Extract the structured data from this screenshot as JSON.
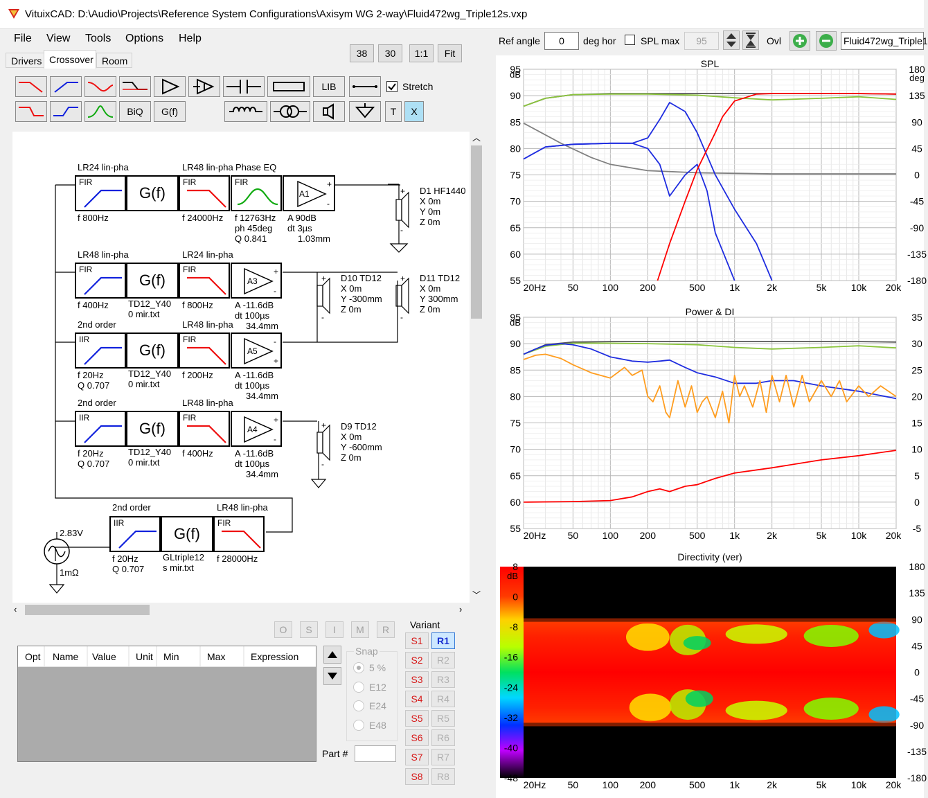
{
  "window": {
    "title": "VituixCAD: D:\\Audio\\Projects\\Reference System Configurations\\Axisym WG 2-way\\Fluid472wg_Triple12s.vxp"
  },
  "menu": {
    "file": "File",
    "view": "View",
    "tools": "Tools",
    "options": "Options",
    "help": "Help"
  },
  "tabs": {
    "drivers": "Drivers",
    "crossover": "Crossover",
    "room": "Room"
  },
  "zoom": {
    "b38": "38",
    "b30": "30",
    "one": "1:1",
    "fit": "Fit"
  },
  "toolbar": {
    "biq": "BiQ",
    "gf": "G(f)",
    "lib": "LIB",
    "t": "T",
    "x": "X",
    "stretch": "Stretch"
  },
  "top": {
    "ref_angle_label": "Ref angle",
    "ref_angle": "0",
    "deg_hor": "deg hor",
    "spl_max_label": "SPL max",
    "spl_max": "95",
    "ovl": "Ovl",
    "file": "Fluid472wg_Triple1"
  },
  "schematic": {
    "row1": {
      "l1": "LR24 lin-pha",
      "l2": "LR48 lin-pha",
      "l3": "Phase EQ",
      "f1": "f  800Hz",
      "f2": "f  24000Hz",
      "eq1": "f  12763Hz",
      "eq2": "ph 45deg",
      "eq3": "Q 0.841",
      "a1": "A  90dB",
      "a2": "dt 3µs",
      "a3": "1.03mm",
      "amp": "A1"
    },
    "row2": {
      "l1": "LR48 lin-pha",
      "l2": "LR24 lin-pha",
      "f1": "f  400Hz",
      "g1": "TD12_Y40",
      "g2": "0 mir.txt",
      "f2": "f  800Hz",
      "a1": "A  -11.6dB",
      "a2": "dt 100µs",
      "a3": "34.4mm",
      "amp": "A3"
    },
    "row3": {
      "l1": "2nd order",
      "l2": "LR48 lin-pha",
      "f1": "f  20Hz",
      "q1": "Q 0.707",
      "g1": "TD12_Y40",
      "g2": "0 mir.txt",
      "f2": "f  200Hz",
      "a1": "A  -11.6dB",
      "a2": "dt 100µs",
      "a3": "34.4mm",
      "amp": "A5"
    },
    "row4": {
      "l1": "2nd order",
      "l2": "LR48 lin-pha",
      "f1": "f  20Hz",
      "q1": "Q 0.707",
      "g1": "TD12_Y40",
      "g2": "0 mir.txt",
      "f2": "f  400Hz",
      "a1": "A  -11.6dB",
      "a2": "dt 100µs",
      "a3": "34.4mm",
      "amp": "A4"
    },
    "row5": {
      "l1": "2nd order",
      "l2": "LR48 lin-pha",
      "f1": "f  20Hz",
      "q1": "Q 0.707",
      "g1": "GLtriple12",
      "g2": "s mir.txt",
      "f2": "f  28000Hz"
    },
    "source": {
      "v": "2.83V",
      "r": "1mΩ"
    },
    "d1": {
      "name": "D1 HF1440",
      "x": "X 0m",
      "y": "Y 0m",
      "z": "Z 0m"
    },
    "d10": {
      "name": "D10 TD12",
      "x": "X 0m",
      "y": "Y -300mm",
      "z": "Z 0m"
    },
    "d11": {
      "name": "D11 TD12",
      "x": "X 0m",
      "y": "Y 300mm",
      "z": "Z 0m"
    },
    "d9": {
      "name": "D9 TD12",
      "x": "X 0m",
      "y": "Y -600mm",
      "z": "Z 0m"
    },
    "fir": "FIR",
    "iir": "IIR",
    "gf": "G(f)"
  },
  "opt_buttons": [
    "O",
    "S",
    "I",
    "M",
    "R"
  ],
  "table": {
    "headers": [
      "Opt",
      "Name",
      "Value",
      "Unit",
      "Min",
      "Max",
      "Expression"
    ]
  },
  "snap": {
    "title": "Snap",
    "o1": "5 %",
    "o2": "E12",
    "o3": "E24",
    "o4": "E48"
  },
  "part": {
    "label": "Part #"
  },
  "variant": {
    "title": "Variant",
    "s": [
      "S1",
      "S2",
      "S3",
      "S4",
      "S5",
      "S6",
      "S7",
      "S8"
    ],
    "r": [
      "R1",
      "R2",
      "R3",
      "R4",
      "R5",
      "R6",
      "R7",
      "R8"
    ]
  },
  "colors": {
    "red": "#ff0000",
    "blue": "#1f2de0",
    "green": "#8ac43c",
    "orange": "#ff9d1f",
    "grey": "#808080",
    "dark": "#555555"
  },
  "xticks": [
    "20Hz",
    "50",
    "100",
    "200",
    "500",
    "1k",
    "2k",
    "5k",
    "10k",
    "20k"
  ],
  "chart_data": [
    {
      "type": "line",
      "title": "SPL",
      "ylabel": "dB",
      "y2label": "deg",
      "xscale": "log",
      "xlim": [
        20,
        20000
      ],
      "ylim": [
        55,
        95
      ],
      "y2lim": [
        -180,
        180
      ],
      "yticks": [
        "95",
        "90",
        "85",
        "80",
        "75",
        "70",
        "65",
        "60",
        "55"
      ],
      "y2ticks": [
        "180",
        "135",
        "90",
        "45",
        "0",
        "-45",
        "-90",
        "-135",
        "-180"
      ],
      "series": [
        {
          "color": "dark",
          "x": [
            20,
            30,
            50,
            100,
            200,
            500,
            1000,
            2000,
            5000,
            10000,
            20000
          ],
          "y": [
            88,
            89.5,
            90.2,
            90.4,
            90.4,
            90.4,
            90.4,
            90.4,
            90.4,
            90.4,
            90.3
          ]
        },
        {
          "color": "green",
          "x": [
            20,
            30,
            50,
            100,
            200,
            500,
            1000,
            2000,
            5000,
            10000,
            20000
          ],
          "y": [
            88,
            89.5,
            90.2,
            90.3,
            90.3,
            90.1,
            89.6,
            89.2,
            89.5,
            89.8,
            89.3
          ]
        },
        {
          "color": "grey",
          "x": [
            20,
            40,
            70,
            100,
            200,
            500,
            1000,
            2000,
            5000,
            20000
          ],
          "y": [
            84.8,
            81,
            78.3,
            77,
            75.8,
            75.4,
            75.3,
            75.2,
            75.2,
            75.2
          ]
        },
        {
          "color": "blue",
          "x": [
            20,
            30,
            50,
            100,
            150,
            200,
            250,
            300,
            400,
            500,
            700,
            1000,
            1500,
            2000
          ],
          "y": [
            78,
            80.3,
            80.8,
            81,
            81,
            82,
            85.5,
            88.7,
            87,
            83,
            75,
            68.5,
            62,
            55
          ]
        },
        {
          "color": "blue",
          "x": [
            20,
            30,
            50,
            100,
            150,
            200,
            250,
            300,
            400,
            500,
            600,
            700,
            1000
          ],
          "y": [
            78,
            80.3,
            80.8,
            81,
            81,
            80,
            77,
            71,
            75,
            77,
            72,
            64,
            55
          ]
        },
        {
          "color": "red",
          "x": [
            240,
            300,
            400,
            500,
            700,
            800,
            1000,
            1500,
            2000,
            5000,
            10000,
            20000
          ],
          "y": [
            55,
            62,
            70,
            76,
            83,
            86,
            89,
            90.3,
            90.4,
            90.4,
            90.4,
            90.3
          ]
        }
      ]
    },
    {
      "type": "line",
      "title": "Power & DI",
      "ylabel": "dB",
      "xscale": "log",
      "xlim": [
        20,
        20000
      ],
      "ylim": [
        55,
        95
      ],
      "y2lim": [
        -5,
        35
      ],
      "yticks": [
        "95",
        "90",
        "85",
        "80",
        "75",
        "70",
        "65",
        "60",
        "55"
      ],
      "y2ticks": [
        "35",
        "30",
        "25",
        "20",
        "15",
        "10",
        "5",
        "0",
        "-5"
      ],
      "series": [
        {
          "color": "dark",
          "x": [
            20,
            30,
            50,
            100,
            200,
            500,
            1000,
            2000,
            5000,
            10000,
            20000
          ],
          "y": [
            88,
            89.8,
            90.3,
            90.4,
            90.4,
            90.4,
            90.4,
            90.4,
            90.4,
            90.4,
            90.3
          ]
        },
        {
          "color": "green",
          "x": [
            20,
            30,
            50,
            100,
            200,
            500,
            1000,
            2000,
            5000,
            10000,
            20000
          ],
          "y": [
            88,
            89.5,
            90.1,
            90.1,
            90,
            89.8,
            89.3,
            89,
            89.3,
            89.6,
            89.2
          ]
        },
        {
          "color": "blue",
          "x": [
            20,
            25,
            30,
            40,
            50,
            70,
            100,
            150,
            200,
            250,
            300,
            400,
            500,
            700,
            1000,
            1500,
            2000,
            3000,
            5000,
            10000,
            20000
          ],
          "y": [
            88,
            89,
            89.7,
            90,
            89.8,
            89,
            87.5,
            86.7,
            86.5,
            86.7,
            86.9,
            85.5,
            84.5,
            83.7,
            82.5,
            82.5,
            83,
            83,
            82,
            81,
            79.6
          ]
        },
        {
          "color": "orange",
          "x": [
            20,
            25,
            30,
            40,
            50,
            70,
            100,
            130,
            150,
            180,
            200,
            220,
            250,
            280,
            300,
            350,
            400,
            450,
            500,
            550,
            600,
            700,
            800,
            900,
            1000,
            1100,
            1200,
            1400,
            1600,
            1800,
            2000,
            2300,
            2600,
            3000,
            3500,
            4000,
            5000,
            6000,
            7000,
            8000,
            10000,
            12000,
            15000,
            20000
          ],
          "y": [
            87,
            87.8,
            88,
            87.2,
            86,
            84.5,
            83.5,
            85.5,
            84,
            85,
            80,
            79,
            82,
            77,
            76,
            83,
            78,
            82,
            77,
            79,
            80,
            76,
            81,
            75,
            84,
            80,
            82,
            78,
            83,
            77,
            84,
            79,
            84,
            78,
            84,
            79,
            83,
            80,
            83,
            79,
            82,
            80,
            82,
            80
          ]
        },
        {
          "color": "red",
          "x": [
            20,
            50,
            100,
            150,
            200,
            250,
            300,
            400,
            500,
            700,
            1000,
            2000,
            5000,
            10000,
            20000
          ],
          "y": [
            60,
            60.1,
            60.3,
            61,
            62,
            62.5,
            62,
            63,
            63.3,
            64.5,
            65.5,
            66.5,
            68,
            68.8,
            69.8
          ]
        }
      ]
    },
    {
      "type": "heatmap",
      "title": "Directivity (ver)",
      "xscale": "log",
      "xlim": [
        20,
        20000
      ],
      "ylim": [
        -180,
        180
      ],
      "colorbar": {
        "label": "dB",
        "ticks": [
          "8",
          "0",
          "-8",
          "-16",
          "-24",
          "-32",
          "-40",
          "-48"
        ]
      },
      "yticks": [
        "180",
        "135",
        "90",
        "45",
        "0",
        "-45",
        "-90",
        "-135",
        "-180"
      ]
    }
  ]
}
